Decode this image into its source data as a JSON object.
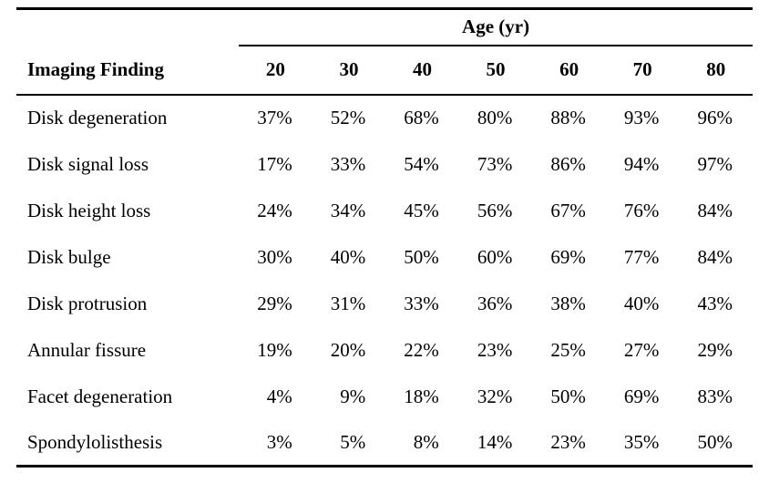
{
  "table": {
    "age_group_header": "Age (yr)",
    "row_header": "Imaging Finding",
    "age_columns": [
      "20",
      "30",
      "40",
      "50",
      "60",
      "70",
      "80"
    ],
    "rows": [
      {
        "label": "Disk degeneration",
        "values": [
          "37%",
          "52%",
          "68%",
          "80%",
          "88%",
          "93%",
          "96%"
        ]
      },
      {
        "label": "Disk signal loss",
        "values": [
          "17%",
          "33%",
          "54%",
          "73%",
          "86%",
          "94%",
          "97%"
        ]
      },
      {
        "label": "Disk height loss",
        "values": [
          "24%",
          "34%",
          "45%",
          "56%",
          "67%",
          "76%",
          "84%"
        ]
      },
      {
        "label": "Disk bulge",
        "values": [
          "30%",
          "40%",
          "50%",
          "60%",
          "69%",
          "77%",
          "84%"
        ]
      },
      {
        "label": "Disk protrusion",
        "values": [
          "29%",
          "31%",
          "33%",
          "36%",
          "38%",
          "40%",
          "43%"
        ]
      },
      {
        "label": "Annular fissure",
        "values": [
          "19%",
          "20%",
          "22%",
          "23%",
          "25%",
          "27%",
          "29%"
        ]
      },
      {
        "label": "Facet degeneration",
        "values": [
          "4%",
          "9%",
          "18%",
          "32%",
          "50%",
          "69%",
          "83%"
        ]
      },
      {
        "label": "Spondylolisthesis",
        "values": [
          "3%",
          "5%",
          "8%",
          "14%",
          "23%",
          "35%",
          "50%"
        ]
      }
    ],
    "colors": {
      "text": "#000000",
      "background": "#ffffff",
      "rule": "#000000"
    }
  }
}
